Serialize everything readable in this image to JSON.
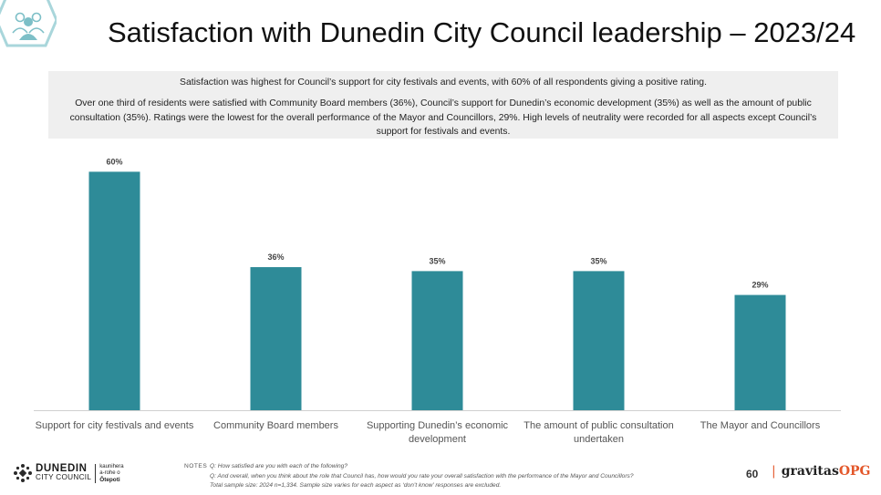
{
  "title": "Satisfaction with Dunedin City Council leadership – 2023/24",
  "summary": {
    "line1": "Satisfaction was highest for Council’s support for city festivals and events, with 60% of all respondents giving a positive rating.",
    "line2": "Over one third of residents were satisfied with Community Board members (36%), Council’s support for Dunedin’s economic development (35%) as well as the amount of public consultation (35%). Ratings were the lowest for the overall performance of the Mayor and Councillors, 29%.  High levels of neutrality were recorded for all aspects except Council’s support for festivals and events."
  },
  "chart_data": {
    "type": "bar",
    "categories": [
      "Support for city festivals and events",
      "Community Board members",
      "Supporting Dunedin’s economic development",
      "The amount of public consultation undertaken",
      "The Mayor and Councillors"
    ],
    "category_lines": [
      [
        "Support for city festivals and events"
      ],
      [
        "Community Board members"
      ],
      [
        "Supporting Dunedin’s economic",
        "development"
      ],
      [
        "The amount of public consultation",
        "undertaken"
      ],
      [
        "The Mayor and Councillors"
      ]
    ],
    "values": [
      60,
      36,
      35,
      35,
      29
    ],
    "value_labels": [
      "60%",
      "36%",
      "35%",
      "35%",
      "29%"
    ],
    "ylim": [
      0,
      100
    ],
    "bar_color": "#2e8b98",
    "grid": false,
    "legend": false
  },
  "notes": {
    "label": "NOTES",
    "lines": [
      "Q: How satisfied are you with each of the following?",
      "Q: And overall, when you think about the role that Council has, how would you rate your overall satisfaction with the performance of the Mayor and Councillors?",
      "Total sample size: 2024 n=1,334. Sample size varies  for each aspect as ‘don’t know’ responses are excluded."
    ]
  },
  "footer": {
    "logo_name": "DUNEDIN",
    "logo_sub": "CITY COUNCIL",
    "logo_maori_1": "kaunihera",
    "logo_maori_2": "a-rohe o",
    "logo_maori_3": "Ōtepoti",
    "page_number": "60",
    "brand_sep": "|",
    "brand_main": "gravitas",
    "brand_accent": "OPG"
  },
  "colors": {
    "accent": "#2e8b98",
    "brand_orange": "#e3572a",
    "summary_bg": "#efefef"
  },
  "icons": {
    "corner": "people-group-icon",
    "logo": "dcc-logo-icon"
  }
}
